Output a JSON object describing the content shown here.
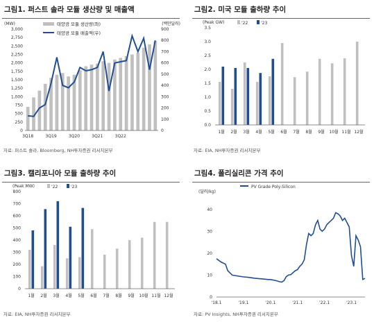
{
  "panels": [
    {
      "title": "그림1. 퍼스트 솔라 모듈 생산량 및 매출액",
      "source": "자료: 퍼스트 솔라, Bloomberg, NH투자증권 리서치본부"
    },
    {
      "title": "그림2. 미국 모듈 출하량 추이",
      "source": "자료: EIA, NH투자증권 리서치본부"
    },
    {
      "title": "그림3. 캘리포니아 모듈 출하량 추이",
      "source": "자료: EIA, NH투자증권 리서치본부"
    },
    {
      "title": "그림4. 폴리실리콘 가격 추이",
      "source": "자료: PV Insights, NH투자증권 리서치본부"
    }
  ],
  "chart_data": [
    {
      "type": "bar+line",
      "title": "그림1. 퍼스트 솔라 모듈 생산량 및 매출액",
      "y_left_label": "(MW)",
      "y_right_label": "(백만달러)",
      "ylim_left": [
        0,
        3000
      ],
      "yticks_left": [
        "0",
        "250",
        "500",
        "750",
        "1,000",
        "1,250",
        "1,500",
        "1,750",
        "2,000",
        "2,250",
        "2,500",
        "2,750",
        "3,000"
      ],
      "ylim_right": [
        0,
        900
      ],
      "yticks_right": [
        "0",
        "100",
        "200",
        "300",
        "400",
        "500",
        "600",
        "700",
        "800",
        "900"
      ],
      "x_tick_labels": [
        "3Q18",
        "3Q19",
        "3Q20",
        "3Q21",
        "3Q22"
      ],
      "legend": "top-left",
      "grid": false,
      "series": [
        {
          "name": "태양광 모듈 생산량(좌)",
          "kind": "bar",
          "axis": "left",
          "color": "#c0c0c0",
          "values": [
            700,
            980,
            1180,
            1380,
            1560,
            1650,
            1700,
            1600,
            1650,
            1780,
            1900,
            1950,
            1980,
            2050,
            2000,
            2100,
            2150,
            2200,
            2250,
            2300,
            2450,
            2550,
            2650
          ]
        },
        {
          "name": "태양광 모듈 매출액(우)",
          "kind": "line",
          "axis": "right",
          "color": "#1f4e96",
          "values": [
            130,
            125,
            200,
            230,
            420,
            650,
            400,
            380,
            430,
            560,
            530,
            540,
            560,
            700,
            350,
            600,
            610,
            620,
            840,
            700,
            820,
            540,
            800
          ]
        }
      ]
    },
    {
      "type": "bar",
      "title": "그림2. 미국 모듈 출하량 추이",
      "ylabel": "(Peak GW)",
      "ylim": [
        0,
        3.5
      ],
      "yticks": [
        "0.0",
        "0.5",
        "1.0",
        "1.5",
        "2.0",
        "2.5",
        "3.0",
        "3.5"
      ],
      "categories": [
        "1월",
        "2월",
        "3월",
        "4월",
        "5월",
        "6월",
        "7월",
        "8월",
        "9월",
        "10월",
        "11월",
        "12월"
      ],
      "legend": "top-left",
      "series": [
        {
          "name": "'22",
          "color": "#c0c0c0",
          "values": [
            1.55,
            1.3,
            2.25,
            1.55,
            1.75,
            2.95,
            1.72,
            1.92,
            2.38,
            2.22,
            2.4,
            3.0
          ]
        },
        {
          "name": "'23",
          "color": "#1f4e96",
          "values": [
            2.1,
            2.05,
            2.05,
            1.87,
            2.38,
            null,
            null,
            null,
            null,
            null,
            null,
            null
          ]
        }
      ]
    },
    {
      "type": "bar",
      "title": "그림3. 캘리포니아 모듈 출하량 추이",
      "ylabel": "(Peak MW)",
      "ylim": [
        0,
        800
      ],
      "yticks": [
        "0",
        "100",
        "200",
        "300",
        "400",
        "500",
        "600",
        "700",
        "800"
      ],
      "categories": [
        "1월",
        "2월",
        "3월",
        "4월",
        "5월",
        "6월",
        "7월",
        "8월",
        "9월",
        "10월",
        "11월",
        "12월"
      ],
      "legend": "top-left",
      "series": [
        {
          "name": "'22",
          "color": "#c0c0c0",
          "values": [
            320,
            185,
            360,
            250,
            260,
            490,
            280,
            330,
            400,
            420,
            550,
            550
          ]
        },
        {
          "name": "'23",
          "color": "#1f4e96",
          "values": [
            480,
            655,
            720,
            510,
            665,
            null,
            null,
            null,
            null,
            null,
            null,
            null
          ]
        }
      ]
    },
    {
      "type": "line",
      "title": "그림4. 폴리실리콘 가격 추이",
      "ylabel": "(달러/kg)",
      "ylim": [
        0,
        45
      ],
      "yticks": [
        "0",
        "10",
        "20",
        "30",
        "40"
      ],
      "xlim": [
        "2018-01",
        "2023-07"
      ],
      "x_tick_labels": [
        "'18.1",
        "'19.1",
        "'20.1",
        "'21.1",
        "'22.1",
        "'23.1"
      ],
      "legend": "top",
      "series": [
        {
          "name": "PV Grade Poly-Silicon",
          "color": "#1f4e96",
          "x": [
            "2018-01",
            "2018-03",
            "2018-05",
            "2018-06",
            "2018-08",
            "2018-11",
            "2019-01",
            "2019-03",
            "2019-06",
            "2019-09",
            "2019-12",
            "2020-01",
            "2020-03",
            "2020-05",
            "2020-06",
            "2020-07",
            "2020-08",
            "2020-09",
            "2020-10",
            "2020-12",
            "2021-01",
            "2021-02",
            "2021-03",
            "2021-04",
            "2021-05",
            "2021-06",
            "2021-07",
            "2021-08",
            "2021-09",
            "2021-10",
            "2021-11",
            "2021-12",
            "2022-01",
            "2022-02",
            "2022-03",
            "2022-04",
            "2022-05",
            "2022-06",
            "2022-07",
            "2022-08",
            "2022-09",
            "2022-10",
            "2022-11",
            "2022-12",
            "2023-01",
            "2023-02",
            "2023-03",
            "2023-04",
            "2023-05",
            "2023-06",
            "2023-07"
          ],
          "y": [
            17.5,
            16,
            15,
            12,
            10,
            9.5,
            9.2,
            9,
            8.6,
            8.3,
            8.0,
            8.0,
            7.6,
            7.0,
            6.8,
            7.5,
            9.3,
            10,
            10.2,
            12,
            12.5,
            14,
            15,
            17,
            24,
            29,
            28,
            29,
            33,
            35,
            31,
            30,
            31,
            33,
            34,
            35,
            36,
            38.5,
            38,
            37,
            35,
            36,
            34,
            32,
            19,
            14,
            28,
            26,
            23,
            8,
            8.5
          ]
        }
      ]
    }
  ]
}
